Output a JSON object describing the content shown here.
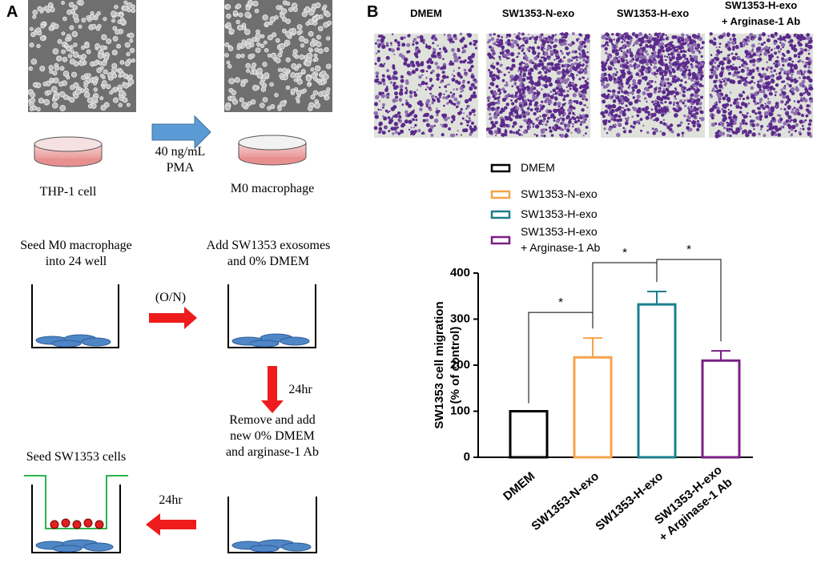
{
  "panel_a": {
    "label": "A",
    "step1": {
      "left": "THP-1 cell",
      "arrow": "40 ng/mL\nPMA",
      "right": "M0 macrophage"
    },
    "step2": {
      "left": "Seed M0 macrophage\ninto 24 well",
      "arrow": "(O/N)",
      "right": "Add SW1353 exosomes\nand 0% DMEM"
    },
    "step3": {
      "arrow": "24hr",
      "right": "Remove and add\nnew 0% DMEM\nand arginase-1 Ab"
    },
    "step4": {
      "left": "Seed SW1353 cells",
      "arrow": "24hr"
    }
  },
  "panel_b": {
    "label": "B",
    "image_titles": [
      "DMEM",
      "SW1353-N-exo",
      "SW1353-H-exo",
      "SW1353-H-exo\n+ Arginase-1 Ab"
    ]
  },
  "chart_data": {
    "type": "bar",
    "y_label": "SW1353 cell migration\n(% of control)",
    "categories": [
      "DMEM",
      "SW1353-N-exo",
      "SW1353-H-exo",
      "SW1353-H-exo\n+ Arginase-1 Ab"
    ],
    "values": [
      100,
      217,
      332,
      210
    ],
    "errors": [
      0,
      42,
      28,
      21
    ],
    "colors": [
      "#000000",
      "#f5a34a",
      "#1b7f8c",
      "#7a1f86"
    ],
    "ylim": [
      0,
      400
    ],
    "yticks": [
      0,
      100,
      200,
      300,
      400
    ],
    "significance": [
      {
        "from": 0,
        "to": 1,
        "label": "*"
      },
      {
        "from": 1,
        "to": 2,
        "label": "*"
      },
      {
        "from": 2,
        "to": 3,
        "label": "*"
      }
    ]
  }
}
